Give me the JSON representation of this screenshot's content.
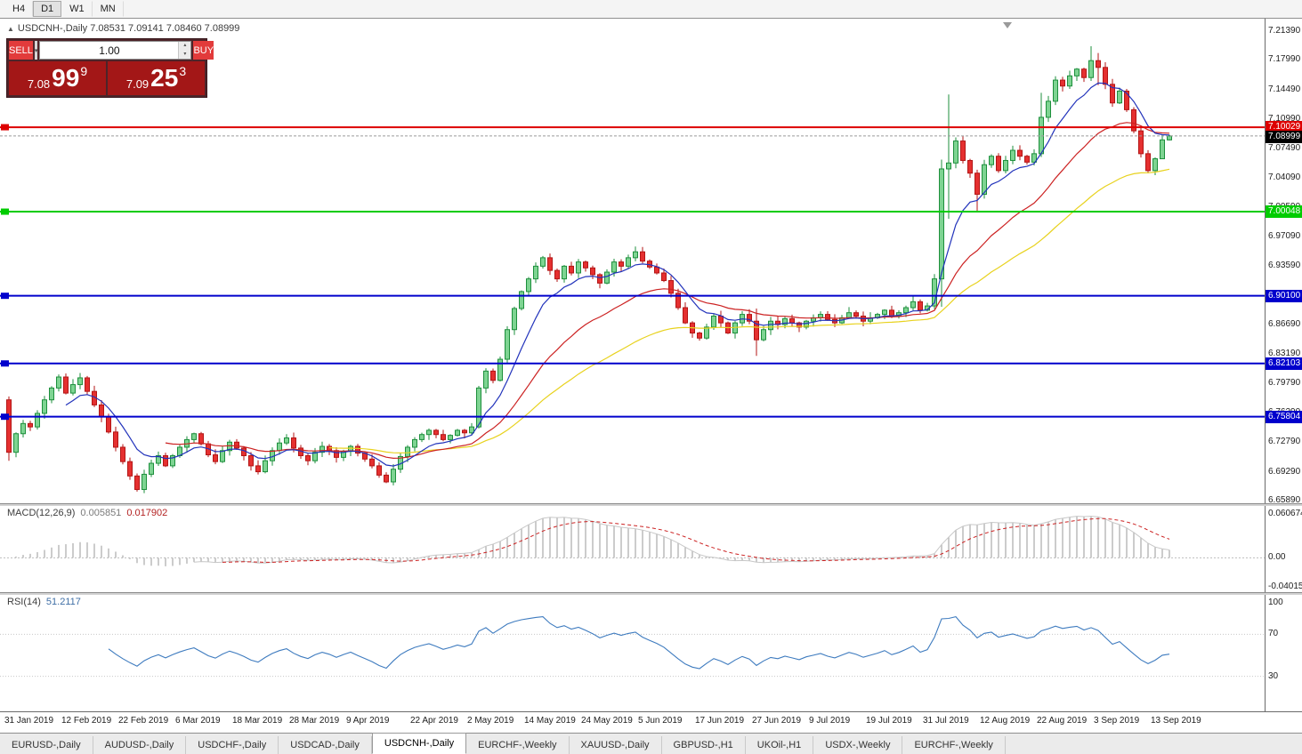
{
  "toolbar": {
    "timeframes": [
      "H4",
      "D1",
      "W1",
      "MN"
    ],
    "active_timeframe": "D1"
  },
  "chart": {
    "panel_toggle_icon": "▲",
    "ohlc_readout": "USDCNH-,Daily 7.08531 7.09141 7.08460 7.08999"
  },
  "trade_panel": {
    "sell_label": "SELL",
    "buy_label": "BUY",
    "volume": "1.00",
    "sell_price": {
      "prefix": "7.08",
      "big": "99",
      "sup": "9"
    },
    "buy_price": {
      "prefix": "7.09",
      "big": "25",
      "sup": "3"
    }
  },
  "price_axis": {
    "labels": [
      "7.21390",
      "7.17990",
      "7.14490",
      "7.10990",
      "7.07490",
      "7.04090",
      "7.00590",
      "6.97090",
      "6.93590",
      "6.90190",
      "6.86690",
      "6.83190",
      "6.79790",
      "6.76290",
      "6.72790",
      "6.69290",
      "6.65890"
    ]
  },
  "current_price": {
    "label": "7.08999",
    "value": 7.08999,
    "color": "#000000"
  },
  "levels": [
    {
      "label": "7.10029",
      "price": 7.10029,
      "color": "#dd0000"
    },
    {
      "label": "7.00048",
      "price": 7.00048,
      "color": "#00cc00"
    },
    {
      "label": "6.90100",
      "price": 6.901,
      "color": "#0000cc"
    },
    {
      "label": "6.82103",
      "price": 6.82103,
      "color": "#0000cc"
    },
    {
      "label": "6.75804",
      "price": 6.75804,
      "color": "#0000cc"
    }
  ],
  "chart_data": {
    "type": "candlestick",
    "symbol": "USDCNH-",
    "timeframe": "Daily",
    "current_bar": {
      "open": 7.08531,
      "high": 7.09141,
      "low": 7.0846,
      "close": 7.08999
    },
    "first_open": 6.778,
    "closes": [
      6.716,
      6.738,
      6.75,
      6.746,
      6.762,
      6.778,
      6.792,
      6.805,
      6.786,
      6.796,
      6.804,
      6.788,
      6.772,
      6.758,
      6.74,
      6.722,
      6.705,
      6.688,
      6.672,
      6.69,
      6.703,
      6.712,
      6.7,
      6.712,
      6.722,
      6.731,
      6.738,
      6.726,
      6.713,
      6.705,
      6.718,
      6.728,
      6.721,
      6.712,
      6.7,
      6.693,
      6.706,
      6.718,
      6.727,
      6.733,
      6.721,
      6.712,
      6.706,
      6.716,
      6.723,
      6.718,
      6.71,
      6.717,
      6.723,
      6.715,
      6.708,
      6.7,
      6.689,
      6.681,
      6.696,
      6.711,
      6.722,
      6.731,
      6.737,
      6.742,
      6.737,
      6.731,
      6.736,
      6.742,
      6.739,
      6.746,
      6.792,
      6.812,
      6.801,
      6.826,
      6.861,
      6.886,
      6.906,
      6.921,
      6.936,
      6.946,
      6.931,
      6.921,
      6.936,
      6.928,
      6.941,
      6.934,
      6.926,
      6.916,
      6.929,
      6.941,
      6.936,
      6.946,
      6.953,
      6.942,
      6.935,
      6.928,
      6.919,
      6.904,
      6.887,
      6.869,
      6.857,
      6.851,
      6.864,
      6.877,
      6.869,
      6.857,
      6.869,
      6.879,
      6.871,
      6.849,
      6.861,
      6.871,
      6.867,
      6.874,
      6.869,
      6.864,
      6.871,
      6.875,
      6.879,
      6.873,
      6.869,
      6.875,
      6.881,
      6.877,
      6.871,
      6.875,
      6.879,
      6.884,
      6.877,
      6.881,
      6.887,
      6.894,
      6.884,
      6.889,
      6.921,
      7.051,
      7.058,
      7.084,
      7.061,
      7.046,
      7.021,
      7.056,
      7.066,
      7.049,
      7.061,
      7.073,
      7.066,
      7.059,
      7.069,
      7.112,
      7.131,
      7.156,
      7.149,
      7.161,
      7.169,
      7.159,
      7.179,
      7.171,
      7.151,
      7.129,
      7.143,
      7.121,
      7.096,
      7.069,
      7.049,
      7.063,
      7.0853,
      7.08999
    ],
    "wick_overrides": {
      "0": [
        6.782,
        6.706
      ],
      "105": [
        6.886,
        6.83
      ],
      "131": [
        7.062,
        6.888
      ],
      "132": [
        7.139,
        6.992
      ],
      "136": [
        7.05,
        7.0
      ],
      "145": [
        7.141,
        7.065
      ],
      "152": [
        7.196,
        7.155
      ],
      "153": [
        7.188,
        7.15
      ],
      "162": [
        7.092,
        7.078
      ],
      "163": [
        7.09141,
        7.0846
      ]
    },
    "candle_up": {
      "fill": "#7ed492",
      "stroke": "#1d8f3c"
    },
    "candle_down": {
      "fill": "#e53030",
      "stroke": "#b31515"
    },
    "x_labels": [
      {
        "text": "31 Jan 2019",
        "day": 0
      },
      {
        "text": "12 Feb 2019",
        "day": 8
      },
      {
        "text": "22 Feb 2019",
        "day": 16
      },
      {
        "text": "6 Mar 2019",
        "day": 24
      },
      {
        "text": "18 Mar 2019",
        "day": 32
      },
      {
        "text": "28 Mar 2019",
        "day": 40
      },
      {
        "text": "9 Apr 2019",
        "day": 48
      },
      {
        "text": "22 Apr 2019",
        "day": 57
      },
      {
        "text": "2 May 2019",
        "day": 65
      },
      {
        "text": "14 May 2019",
        "day": 73
      },
      {
        "text": "24 May 2019",
        "day": 81
      },
      {
        "text": "5 Jun 2019",
        "day": 89
      },
      {
        "text": "17 Jun 2019",
        "day": 97
      },
      {
        "text": "27 Jun 2019",
        "day": 105
      },
      {
        "text": "9 Jul 2019",
        "day": 113
      },
      {
        "text": "19 Jul 2019",
        "day": 121
      },
      {
        "text": "31 Jul 2019",
        "day": 129
      },
      {
        "text": "12 Aug 2019",
        "day": 137
      },
      {
        "text": "22 Aug 2019",
        "day": 145
      },
      {
        "text": "3 Sep 2019",
        "day": 153
      },
      {
        "text": "13 Sep 2019",
        "day": 161
      }
    ],
    "indicators": {
      "ma_fast": {
        "period": 8,
        "color": "#2233bb"
      },
      "ma_mid": {
        "period": 22,
        "color": "#cc2222"
      },
      "ma_slow": {
        "period": 45,
        "color": "#e8d21e"
      },
      "macd": {
        "label": "MACD(12,26,9)",
        "value_main": "0.005851",
        "value_signal": "0.017902",
        "scale_max": "0.060674",
        "scale_zero": "0.00",
        "scale_min": "-0.040152",
        "histogram_color": "#b0b0b0",
        "signal_color": "#cc2222"
      },
      "rsi": {
        "label": "RSI(14)",
        "value": "51.2117",
        "scale_labels": [
          "100",
          "70",
          "30"
        ],
        "line_color": "#3e7bbf"
      }
    }
  },
  "tabbar": {
    "active_index": 4,
    "tabs": [
      "EURUSD-,Daily",
      "AUDUSD-,Daily",
      "USDCHF-,Daily",
      "USDCAD-,Daily",
      "USDCNH-,Daily",
      "EURCHF-,Weekly",
      "XAUUSD-,Daily",
      "GBPUSD-,H1",
      "UKOil-,H1",
      "USDX-,Weekly",
      "EURCHF-,Weekly"
    ]
  }
}
